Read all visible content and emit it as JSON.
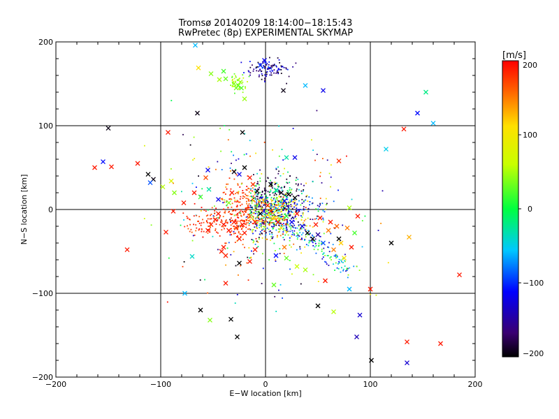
{
  "chart_data": {
    "type": "scatter",
    "title": "Tromsø 20140209 18:14:00−18:15:43",
    "subtitle": "RwPretec (8p) EXPERIMENTAL SKYMAP",
    "xlabel": "E−W location [km]",
    "ylabel": "N−S location [km]",
    "xlim": [
      -200,
      200
    ],
    "ylim": [
      -200,
      200
    ],
    "x_ticks": [
      "−200",
      "−100",
      "0",
      "100",
      "200"
    ],
    "y_ticks": [
      "−200",
      "−100",
      "0",
      "100",
      "200"
    ],
    "grid": true,
    "colorbar": {
      "label": "[m/s]",
      "range": [
        -200,
        200
      ],
      "ticks": [
        "200",
        "100",
        "0",
        "−100",
        "−200"
      ],
      "colormap": "rainbow-black-to-red"
    },
    "large_markers": [
      {
        "x": -67,
        "y": 196,
        "v": -60
      },
      {
        "x": -65,
        "y": 115,
        "v": -195
      },
      {
        "x": -64,
        "y": 169,
        "v": 110
      },
      {
        "x": -52,
        "y": 162,
        "v": 40
      },
      {
        "x": -44,
        "y": 155,
        "v": 50
      },
      {
        "x": -40,
        "y": 165,
        "v": 20
      },
      {
        "x": -38,
        "y": 156,
        "v": 30
      },
      {
        "x": -30,
        "y": 150,
        "v": 40
      },
      {
        "x": -28,
        "y": 145,
        "v": 35
      },
      {
        "x": -26,
        "y": 148,
        "v": 30
      },
      {
        "x": -24,
        "y": 152,
        "v": 45
      },
      {
        "x": -23,
        "y": 145,
        "v": 25
      },
      {
        "x": -20,
        "y": 132,
        "v": 45
      },
      {
        "x": -5,
        "y": 172,
        "v": -100
      },
      {
        "x": -1,
        "y": 178,
        "v": -120
      },
      {
        "x": 17,
        "y": 142,
        "v": -195
      },
      {
        "x": 38,
        "y": 148,
        "v": -60
      },
      {
        "x": 55,
        "y": 142,
        "v": -120
      },
      {
        "x": 153,
        "y": 140,
        "v": -20
      },
      {
        "x": 145,
        "y": 115,
        "v": -110
      },
      {
        "x": 160,
        "y": 103,
        "v": -60
      },
      {
        "x": 132,
        "y": 96,
        "v": 190
      },
      {
        "x": -150,
        "y": 97,
        "v": -195
      },
      {
        "x": -93,
        "y": 92,
        "v": 190
      },
      {
        "x": -22,
        "y": 92,
        "v": -200
      },
      {
        "x": 115,
        "y": 72,
        "v": -50
      },
      {
        "x": 70,
        "y": 58,
        "v": 180
      },
      {
        "x": -155,
        "y": 57,
        "v": -110
      },
      {
        "x": -163,
        "y": 50,
        "v": 190
      },
      {
        "x": -147,
        "y": 51,
        "v": 190
      },
      {
        "x": -122,
        "y": 55,
        "v": 190
      },
      {
        "x": -112,
        "y": 42,
        "v": -200
      },
      {
        "x": -107,
        "y": 36,
        "v": -195
      },
      {
        "x": -98,
        "y": 27,
        "v": 55
      },
      {
        "x": -90,
        "y": 34,
        "v": 80
      },
      {
        "x": -87,
        "y": 20,
        "v": 40
      },
      {
        "x": -110,
        "y": 32,
        "v": -90
      },
      {
        "x": -55,
        "y": 47,
        "v": -120
      },
      {
        "x": -57,
        "y": 38,
        "v": 170
      },
      {
        "x": -54,
        "y": 24,
        "v": -30
      },
      {
        "x": -62,
        "y": 15,
        "v": 20
      },
      {
        "x": -45,
        "y": 12,
        "v": -120
      },
      {
        "x": -78,
        "y": 8,
        "v": 190
      },
      {
        "x": -88,
        "y": -2,
        "v": 190
      },
      {
        "x": -95,
        "y": -27,
        "v": 190
      },
      {
        "x": -68,
        "y": 20,
        "v": 190
      },
      {
        "x": -30,
        "y": 45,
        "v": -195
      },
      {
        "x": -25,
        "y": 42,
        "v": -120
      },
      {
        "x": -20,
        "y": 50,
        "v": -200
      },
      {
        "x": -15,
        "y": 38,
        "v": 190
      },
      {
        "x": -12,
        "y": 30,
        "v": 180
      },
      {
        "x": -8,
        "y": 22,
        "v": -200
      },
      {
        "x": 5,
        "y": 30,
        "v": -200
      },
      {
        "x": 10,
        "y": 23,
        "v": -20
      },
      {
        "x": 15,
        "y": 20,
        "v": -195
      },
      {
        "x": 22,
        "y": 18,
        "v": -200
      },
      {
        "x": 28,
        "y": 14,
        "v": -200
      },
      {
        "x": 18,
        "y": 10,
        "v": -110
      },
      {
        "x": 20,
        "y": 62,
        "v": -30
      },
      {
        "x": 28,
        "y": 62,
        "v": -120
      },
      {
        "x": -32,
        "y": 20,
        "v": 190
      },
      {
        "x": -35,
        "y": 8,
        "v": 40
      },
      {
        "x": -45,
        "y": -5,
        "v": 190
      },
      {
        "x": -48,
        "y": -12,
        "v": 190
      },
      {
        "x": -52,
        "y": -18,
        "v": 190
      },
      {
        "x": -55,
        "y": -25,
        "v": 190
      },
      {
        "x": -40,
        "y": -18,
        "v": 190
      },
      {
        "x": -35,
        "y": -25,
        "v": 190
      },
      {
        "x": -30,
        "y": -15,
        "v": 190
      },
      {
        "x": -28,
        "y": -22,
        "v": 185
      },
      {
        "x": -22,
        "y": -18,
        "v": 190
      },
      {
        "x": -20,
        "y": -28,
        "v": 190
      },
      {
        "x": -25,
        "y": -35,
        "v": 190
      },
      {
        "x": -40,
        "y": -45,
        "v": 190
      },
      {
        "x": -42,
        "y": -50,
        "v": 190
      },
      {
        "x": -38,
        "y": -55,
        "v": 185
      },
      {
        "x": -15,
        "y": -8,
        "v": 150
      },
      {
        "x": -10,
        "y": -15,
        "v": 190
      },
      {
        "x": -5,
        "y": -5,
        "v": -200
      },
      {
        "x": 2,
        "y": 5,
        "v": 190
      },
      {
        "x": 5,
        "y": -2,
        "v": 190
      },
      {
        "x": 8,
        "y": -10,
        "v": 120
      },
      {
        "x": 12,
        "y": -15,
        "v": 190
      },
      {
        "x": 15,
        "y": -22,
        "v": 100
      },
      {
        "x": 20,
        "y": -8,
        "v": 10
      },
      {
        "x": 25,
        "y": -15,
        "v": -120
      },
      {
        "x": 30,
        "y": -5,
        "v": 190
      },
      {
        "x": 35,
        "y": -20,
        "v": -120
      },
      {
        "x": 40,
        "y": -28,
        "v": -200
      },
      {
        "x": 45,
        "y": -35,
        "v": -200
      },
      {
        "x": 50,
        "y": -30,
        "v": -150
      },
      {
        "x": 55,
        "y": -40,
        "v": -90
      },
      {
        "x": 48,
        "y": -18,
        "v": 190
      },
      {
        "x": 52,
        "y": -10,
        "v": 190
      },
      {
        "x": 60,
        "y": -25,
        "v": 150
      },
      {
        "x": 62,
        "y": -15,
        "v": 190
      },
      {
        "x": 68,
        "y": -20,
        "v": 160
      },
      {
        "x": 70,
        "y": -35,
        "v": -200
      },
      {
        "x": 65,
        "y": -48,
        "v": 150
      },
      {
        "x": 72,
        "y": -40,
        "v": 120
      },
      {
        "x": 78,
        "y": -22,
        "v": 150
      },
      {
        "x": 82,
        "y": -45,
        "v": 190
      },
      {
        "x": 85,
        "y": -28,
        "v": 20
      },
      {
        "x": 75,
        "y": -58,
        "v": 110
      },
      {
        "x": 80,
        "y": 2,
        "v": 50
      },
      {
        "x": 120,
        "y": -40,
        "v": -200
      },
      {
        "x": 137,
        "y": -33,
        "v": 130
      },
      {
        "x": 88,
        "y": -8,
        "v": 190
      },
      {
        "x": -132,
        "y": -48,
        "v": 190
      },
      {
        "x": -70,
        "y": -56,
        "v": -40
      },
      {
        "x": -25,
        "y": -64,
        "v": -200
      },
      {
        "x": -15,
        "y": -62,
        "v": 190
      },
      {
        "x": -10,
        "y": -48,
        "v": 190
      },
      {
        "x": 18,
        "y": -45,
        "v": 150
      },
      {
        "x": 20,
        "y": -58,
        "v": 30
      },
      {
        "x": 10,
        "y": -55,
        "v": -110
      },
      {
        "x": 30,
        "y": -68,
        "v": 60
      },
      {
        "x": 38,
        "y": -72,
        "v": 50
      },
      {
        "x": -38,
        "y": -88,
        "v": 190
      },
      {
        "x": 8,
        "y": -90,
        "v": 30
      },
      {
        "x": 57,
        "y": -85,
        "v": 190
      },
      {
        "x": 80,
        "y": -95,
        "v": -60
      },
      {
        "x": 100,
        "y": -95,
        "v": 190
      },
      {
        "x": 185,
        "y": -78,
        "v": 190
      },
      {
        "x": -77,
        "y": -100,
        "v": -60
      },
      {
        "x": -62,
        "y": -120,
        "v": -200
      },
      {
        "x": -53,
        "y": -132,
        "v": 40
      },
      {
        "x": -33,
        "y": -131,
        "v": -200
      },
      {
        "x": -27,
        "y": -152,
        "v": -200
      },
      {
        "x": 50,
        "y": -115,
        "v": -200
      },
      {
        "x": 65,
        "y": -122,
        "v": 55
      },
      {
        "x": 90,
        "y": -126,
        "v": -130
      },
      {
        "x": 87,
        "y": -152,
        "v": -140
      },
      {
        "x": 101,
        "y": -180,
        "v": -200
      },
      {
        "x": 135,
        "y": -158,
        "v": 190
      },
      {
        "x": 135,
        "y": -183,
        "v": -130
      },
      {
        "x": 167,
        "y": -160,
        "v": 190
      }
    ],
    "points_note": "plus several hundred small dot markers densely clustered around (0,0) with the same colour scale"
  }
}
